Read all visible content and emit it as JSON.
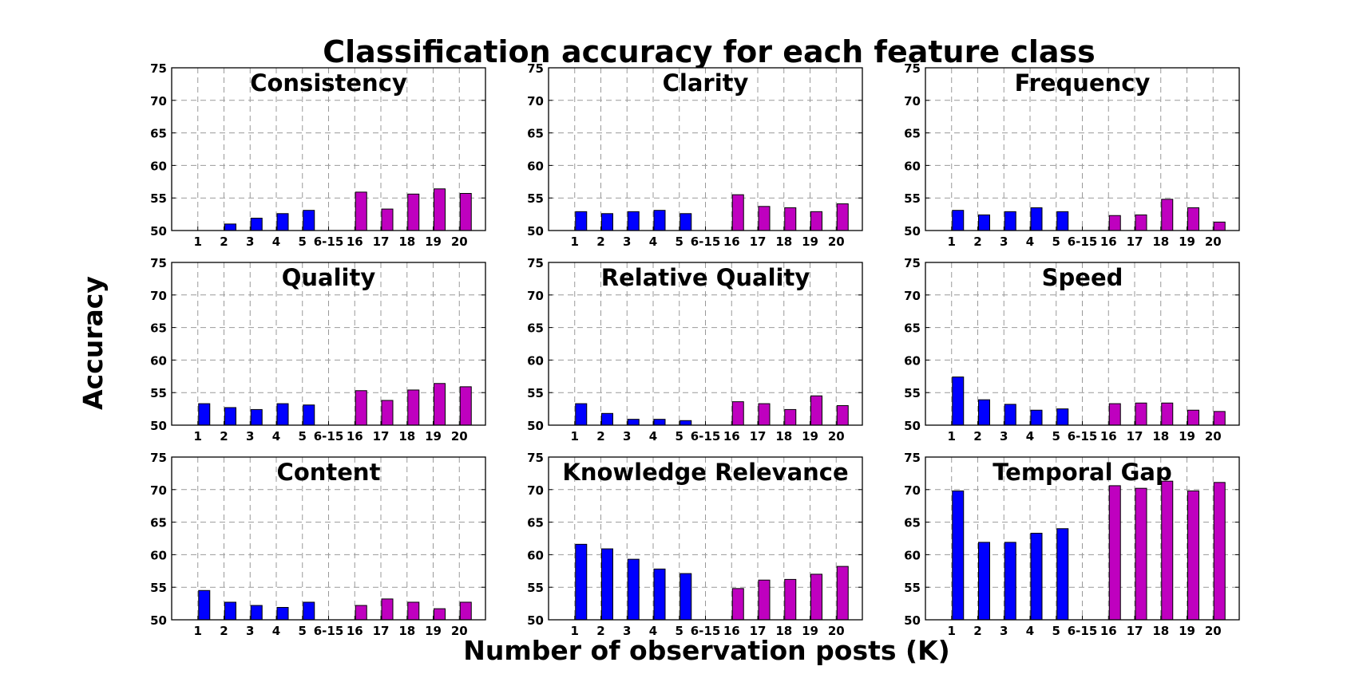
{
  "figure": {
    "title": "Classification accuracy for each feature class",
    "xlabel": "Number of observation posts (K)",
    "ylabel": "Accuracy"
  },
  "colors": {
    "before_gap": "#0000ff",
    "after_gap": "#bf00bf",
    "edge": "#000000",
    "grid": "#999999"
  },
  "chart_data": [
    {
      "type": "bar",
      "title": "Consistency",
      "categories": [
        "1",
        "2",
        "3",
        "4",
        "5",
        "6-15",
        "16",
        "17",
        "18",
        "19",
        "20"
      ],
      "values": [
        50.0,
        51.0,
        51.9,
        52.6,
        53.1,
        null,
        55.9,
        53.3,
        55.6,
        56.4,
        55.7
      ],
      "ylim": [
        50,
        75
      ],
      "yticks": [
        50,
        55,
        60,
        65,
        70,
        75
      ],
      "grid": true
    },
    {
      "type": "bar",
      "title": "Clarity",
      "categories": [
        "1",
        "2",
        "3",
        "4",
        "5",
        "6-15",
        "16",
        "17",
        "18",
        "19",
        "20"
      ],
      "values": [
        52.9,
        52.6,
        52.9,
        53.1,
        52.6,
        null,
        55.5,
        53.7,
        53.5,
        52.9,
        54.1
      ],
      "ylim": [
        50,
        75
      ],
      "yticks": [
        50,
        55,
        60,
        65,
        70,
        75
      ],
      "grid": true
    },
    {
      "type": "bar",
      "title": "Frequency",
      "categories": [
        "1",
        "2",
        "3",
        "4",
        "5",
        "6-15",
        "16",
        "17",
        "18",
        "19",
        "20"
      ],
      "values": [
        53.1,
        52.4,
        52.9,
        53.5,
        52.9,
        null,
        52.3,
        52.4,
        54.8,
        53.5,
        51.3
      ],
      "ylim": [
        50,
        75
      ],
      "yticks": [
        50,
        55,
        60,
        65,
        70,
        75
      ],
      "grid": true
    },
    {
      "type": "bar",
      "title": "Quality",
      "categories": [
        "1",
        "2",
        "3",
        "4",
        "5",
        "6-15",
        "16",
        "17",
        "18",
        "19",
        "20"
      ],
      "values": [
        53.3,
        52.7,
        52.4,
        53.3,
        53.1,
        null,
        55.3,
        53.8,
        55.4,
        56.4,
        55.9
      ],
      "ylim": [
        50,
        75
      ],
      "yticks": [
        50,
        55,
        60,
        65,
        70,
        75
      ],
      "grid": true
    },
    {
      "type": "bar",
      "title": "Relative Quality",
      "categories": [
        "1",
        "2",
        "3",
        "4",
        "5",
        "6-15",
        "16",
        "17",
        "18",
        "19",
        "20"
      ],
      "values": [
        53.3,
        51.8,
        50.9,
        50.9,
        50.7,
        null,
        53.6,
        53.3,
        52.4,
        54.5,
        53.0
      ],
      "ylim": [
        50,
        75
      ],
      "yticks": [
        50,
        55,
        60,
        65,
        70,
        75
      ],
      "grid": true
    },
    {
      "type": "bar",
      "title": "Speed",
      "categories": [
        "1",
        "2",
        "3",
        "4",
        "5",
        "6-15",
        "16",
        "17",
        "18",
        "19",
        "20"
      ],
      "values": [
        57.4,
        53.9,
        53.2,
        52.3,
        52.5,
        null,
        53.3,
        53.4,
        53.4,
        52.3,
        52.1
      ],
      "ylim": [
        50,
        75
      ],
      "yticks": [
        50,
        55,
        60,
        65,
        70,
        75
      ],
      "grid": true
    },
    {
      "type": "bar",
      "title": "Content",
      "categories": [
        "1",
        "2",
        "3",
        "4",
        "5",
        "6-15",
        "16",
        "17",
        "18",
        "19",
        "20"
      ],
      "values": [
        54.5,
        52.7,
        52.2,
        51.9,
        52.7,
        null,
        52.2,
        53.2,
        52.7,
        51.7,
        52.7
      ],
      "ylim": [
        50,
        75
      ],
      "yticks": [
        50,
        55,
        60,
        65,
        70,
        75
      ],
      "grid": true
    },
    {
      "type": "bar",
      "title": "Knowledge Relevance",
      "categories": [
        "1",
        "2",
        "3",
        "4",
        "5",
        "6-15",
        "16",
        "17",
        "18",
        "19",
        "20"
      ],
      "values": [
        61.6,
        60.9,
        59.3,
        57.8,
        57.1,
        null,
        54.8,
        56.1,
        56.2,
        57.0,
        58.2
      ],
      "ylim": [
        50,
        75
      ],
      "yticks": [
        50,
        55,
        60,
        65,
        70,
        75
      ],
      "grid": true
    },
    {
      "type": "bar",
      "title": "Temporal Gap",
      "categories": [
        "1",
        "2",
        "3",
        "4",
        "5",
        "6-15",
        "16",
        "17",
        "18",
        "19",
        "20"
      ],
      "values": [
        69.8,
        61.9,
        61.9,
        63.3,
        64.0,
        null,
        70.6,
        70.2,
        71.3,
        69.8,
        71.1
      ],
      "ylim": [
        50,
        75
      ],
      "yticks": [
        50,
        55,
        60,
        65,
        70,
        75
      ],
      "grid": true
    }
  ]
}
